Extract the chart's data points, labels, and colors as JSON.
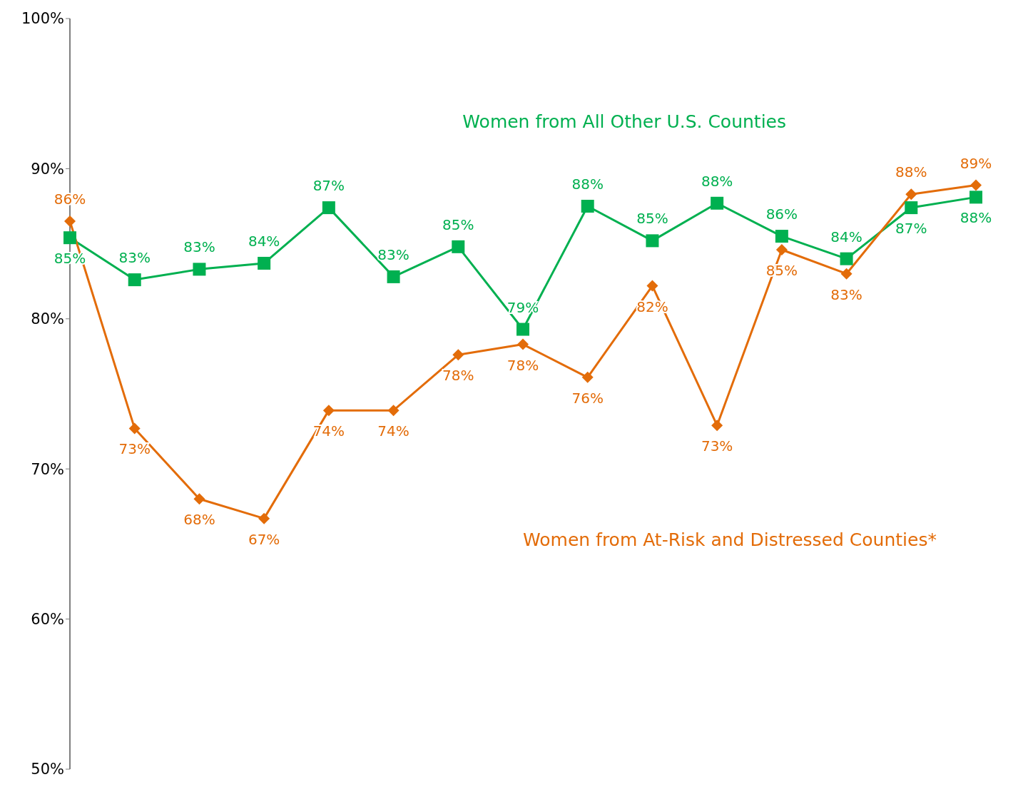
{
  "chart_data": {
    "type": "line",
    "categories": [
      null,
      null,
      null,
      null,
      null,
      null,
      null,
      null,
      null,
      null,
      null,
      null,
      null,
      null,
      null
    ],
    "ylim": [
      50,
      100
    ],
    "yticks": [
      {
        "value": 50,
        "label": "50%"
      },
      {
        "value": 60,
        "label": "60%"
      },
      {
        "value": 70,
        "label": "70%"
      },
      {
        "value": 80,
        "label": "80%"
      },
      {
        "value": 90,
        "label": "90%"
      },
      {
        "value": 100,
        "label": "100%"
      }
    ],
    "grid": false,
    "legend": false,
    "line_style": "solid",
    "tick_labels": "y",
    "series": [
      {
        "name": "Women from All Other U.S. Counties",
        "color": "#00b050",
        "marker": "square",
        "values": [
          85.4,
          82.6,
          83.3,
          83.7,
          87.4,
          82.8,
          84.8,
          79.3,
          87.5,
          85.2,
          87.7,
          85.5,
          84.0,
          87.4,
          88.1
        ],
        "value_labels": [
          "85%",
          "83%",
          "83%",
          "84%",
          "87%",
          "83%",
          "85%",
          "79%",
          "88%",
          "85%",
          "88%",
          "86%",
          "84%",
          "87%",
          "88%"
        ]
      },
      {
        "name": "Women from At-Risk and Distressed Counties*",
        "color": "#e36c09",
        "marker": "diamond",
        "values": [
          86.5,
          72.7,
          68.0,
          66.7,
          73.9,
          73.9,
          77.6,
          78.3,
          76.1,
          82.2,
          72.9,
          84.6,
          83.0,
          88.3,
          88.9
        ],
        "value_labels": [
          "86%",
          "73%",
          "68%",
          "67%",
          "74%",
          "74%",
          "78%",
          "78%",
          "76%",
          "82%",
          "73%",
          "85%",
          "83%",
          "88%",
          "89%"
        ]
      }
    ]
  }
}
